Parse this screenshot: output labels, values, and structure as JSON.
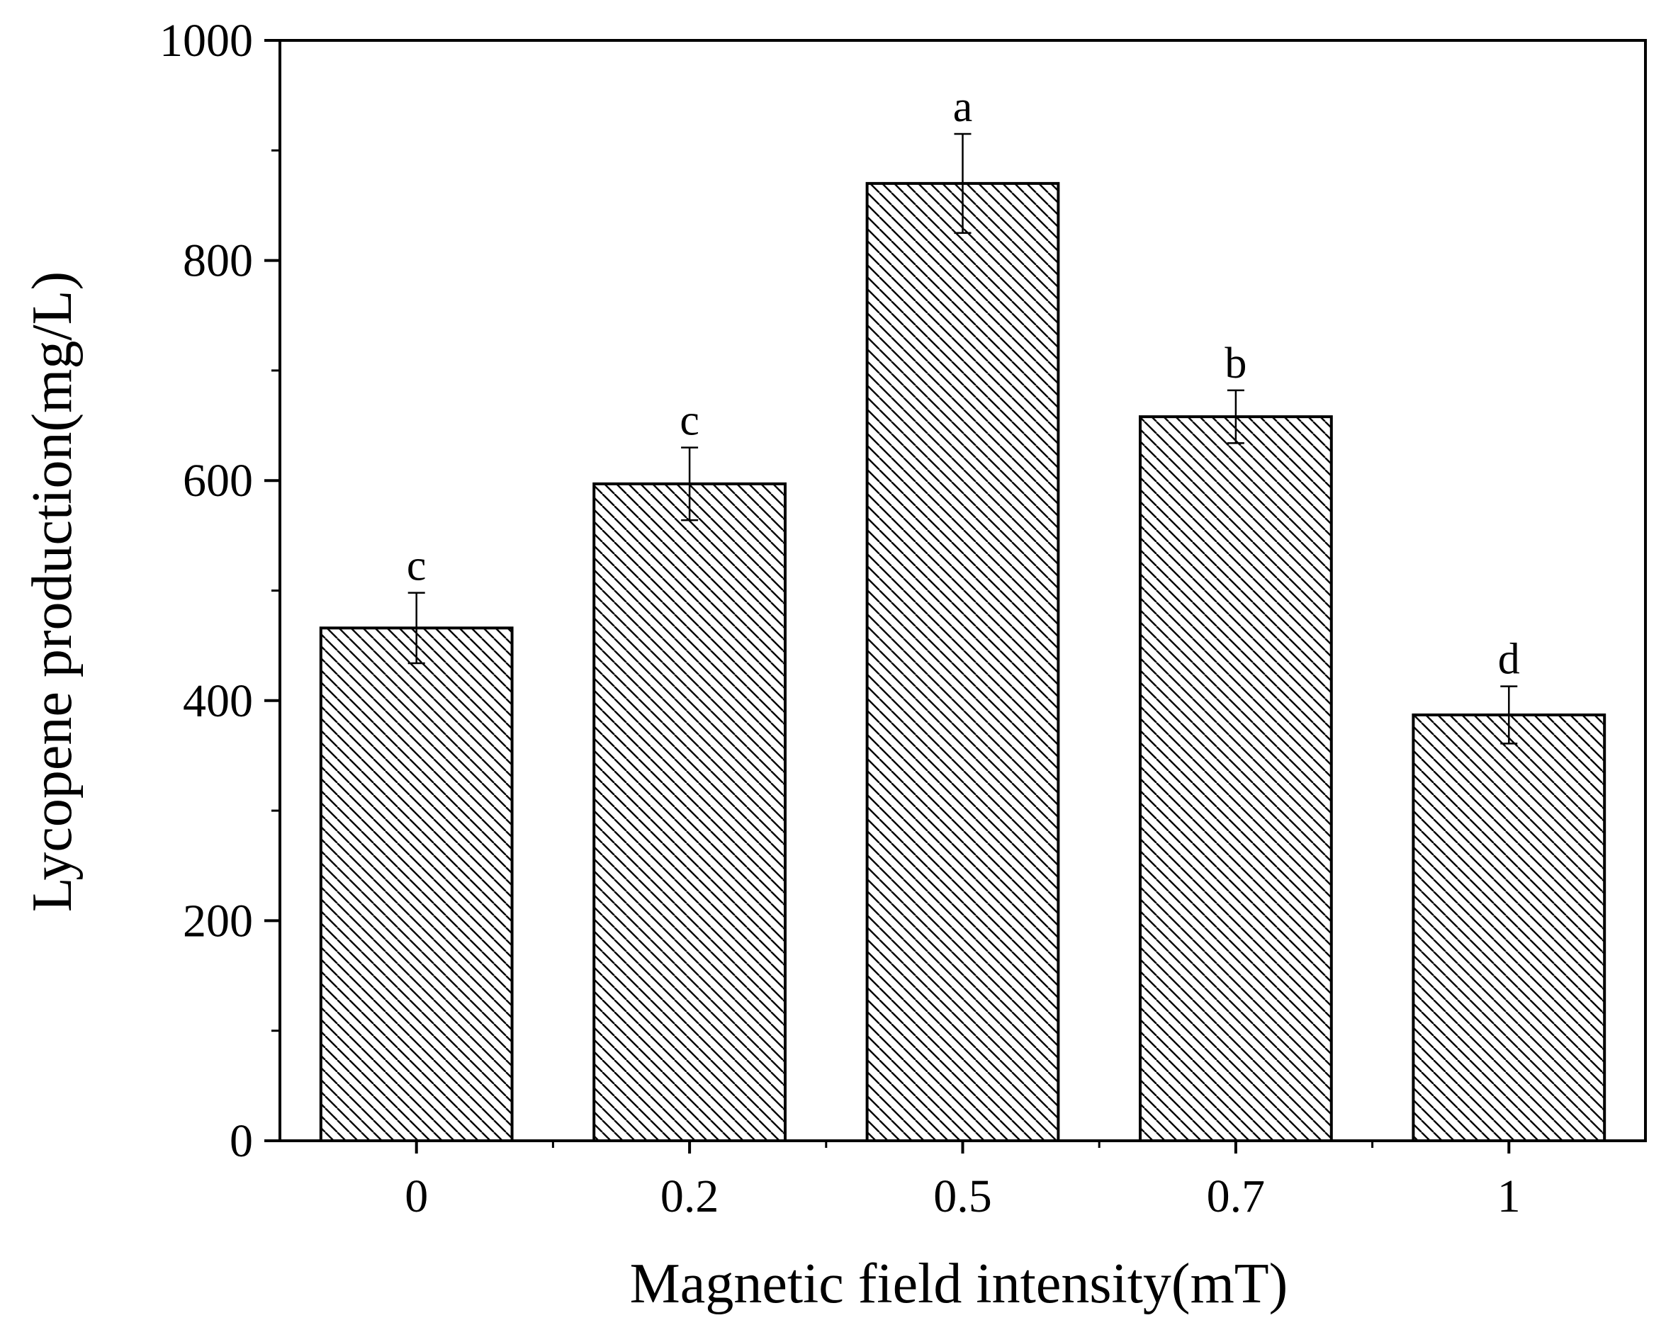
{
  "chart_data": {
    "type": "bar",
    "title": "",
    "xlabel": "Magnetic field intensity(mT)",
    "ylabel": "Lycopene production(mg/L)",
    "categories": [
      "0",
      "0.2",
      "0.5",
      "0.7",
      "1"
    ],
    "values": [
      466,
      597,
      870,
      658,
      387
    ],
    "errors": [
      32,
      33,
      45,
      24,
      26
    ],
    "significance_labels": [
      "c",
      "c",
      "a",
      "b",
      "d"
    ],
    "ylim": [
      0,
      1000
    ],
    "yticks": [
      0,
      200,
      400,
      600,
      800,
      1000
    ],
    "ytick_labels": [
      "0",
      "200",
      "400",
      "600",
      "800",
      "1000"
    ],
    "grid": false,
    "legend": "none",
    "bar_fill": "diagonal-hatch",
    "colors": {
      "stroke": "#000000",
      "background": "#ffffff"
    }
  }
}
